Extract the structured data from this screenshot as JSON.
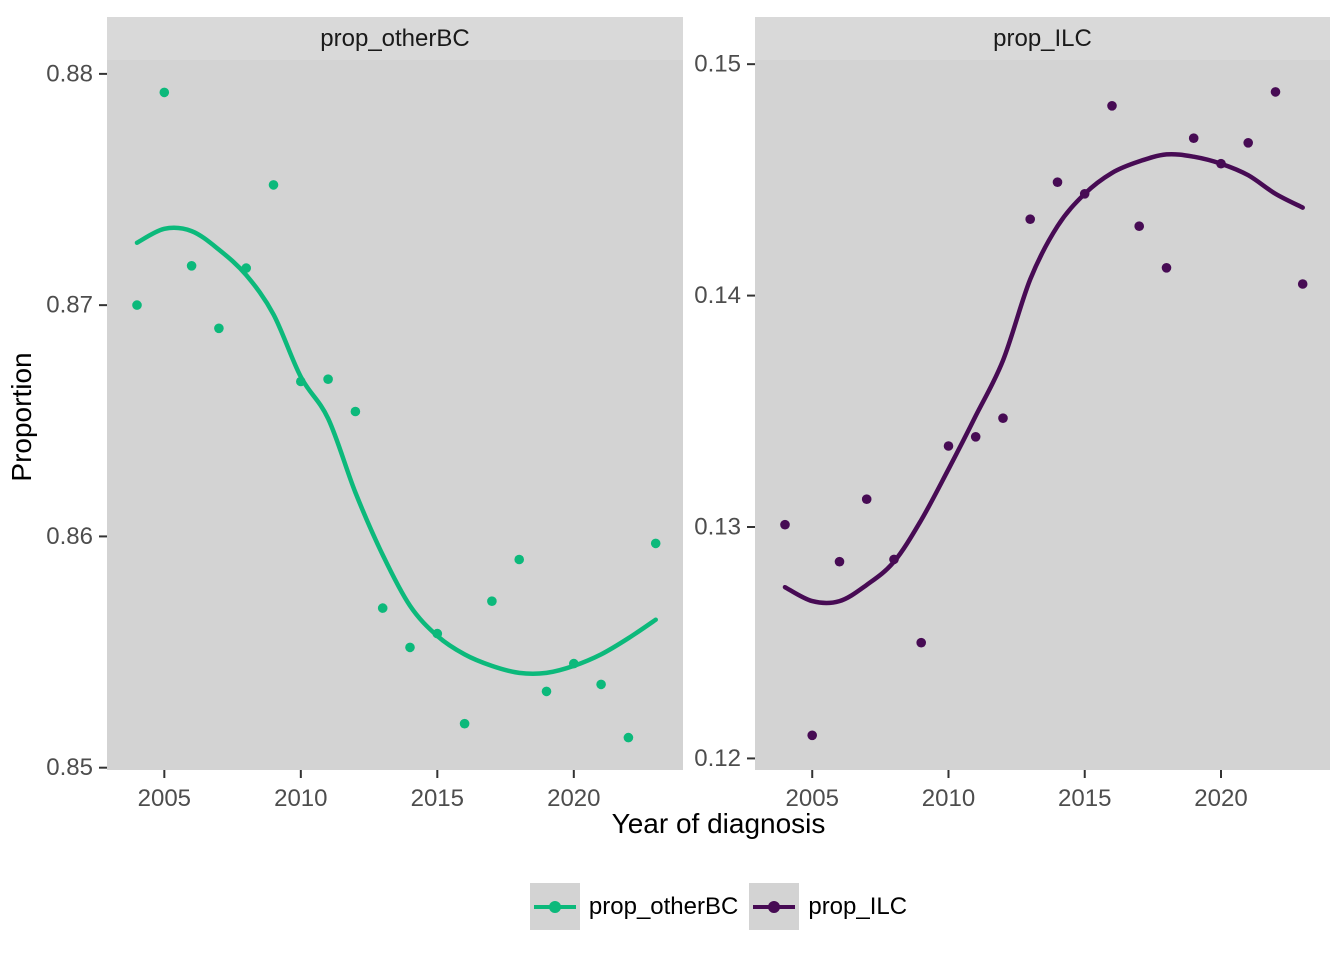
{
  "chart_data": {
    "type": "scatter",
    "x_label": "Year of diagnosis",
    "y_label": "Proportion",
    "legend_position": "bottom",
    "grid": false,
    "panel_background": "#D3D3D3",
    "strip_background": "#D9D9D9",
    "x": [
      2004,
      2005,
      2006,
      2007,
      2008,
      2009,
      2010,
      2011,
      2012,
      2013,
      2014,
      2015,
      2016,
      2017,
      2018,
      2019,
      2020,
      2021,
      2022,
      2023
    ],
    "x_domain": [
      2002.9,
      2024.0
    ],
    "x_ticks": [
      {
        "label": "2005",
        "value": 2005
      },
      {
        "label": "2010",
        "value": 2010
      },
      {
        "label": "2015",
        "value": 2015
      },
      {
        "label": "2020",
        "value": 2020
      }
    ],
    "facets": [
      {
        "title": "prop_otherBC",
        "color": "#0CB97B",
        "y_domain": [
          0.8499,
          0.8806
        ],
        "y_ticks": [
          {
            "label": "0.88",
            "value": 0.88
          },
          {
            "label": "0.87",
            "value": 0.87
          },
          {
            "label": "0.86",
            "value": 0.86
          },
          {
            "label": "0.85",
            "value": 0.85
          }
        ],
        "points": [
          0.87,
          0.8792,
          0.8717,
          0.869,
          0.8716,
          0.8752,
          0.8667,
          0.8668,
          0.8654,
          0.8569,
          0.8552,
          0.8558,
          0.8519,
          0.8572,
          0.859,
          0.8533,
          0.8545,
          0.8536,
          0.8513,
          0.8597
        ],
        "smooth": [
          0.8727,
          0.8733,
          0.8732,
          0.8724,
          0.8713,
          0.8696,
          0.8669,
          0.8651,
          0.8619,
          0.8592,
          0.857,
          0.8557,
          0.8549,
          0.8544,
          0.8541,
          0.8541,
          0.8544,
          0.8549,
          0.8556,
          0.8564
        ]
      },
      {
        "title": "prop_ILC",
        "color": "#470B54",
        "y_domain": [
          0.1195,
          0.15018
        ],
        "y_ticks": [
          {
            "label": "0.15",
            "value": 0.15
          },
          {
            "label": "0.14",
            "value": 0.14
          },
          {
            "label": "0.13",
            "value": 0.13
          },
          {
            "label": "0.12",
            "value": 0.12
          }
        ],
        "points": [
          0.1301,
          0.121,
          0.1285,
          0.1312,
          0.1286,
          0.125,
          0.1335,
          0.1339,
          0.1347,
          0.1433,
          0.1449,
          0.1444,
          0.1482,
          0.143,
          0.1412,
          0.1468,
          0.1457,
          0.1466,
          0.1488,
          0.1405
        ],
        "smooth": [
          0.1274,
          0.1268,
          0.1268,
          0.1275,
          0.1285,
          0.1303,
          0.1325,
          0.1348,
          0.1372,
          0.1407,
          0.143,
          0.1444,
          0.1453,
          0.1458,
          0.1461,
          0.146,
          0.1457,
          0.1452,
          0.1444,
          0.1438
        ]
      }
    ]
  }
}
